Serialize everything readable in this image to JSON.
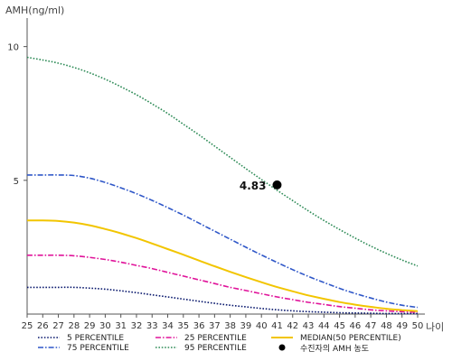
{
  "chart_data": {
    "type": "line",
    "ylabel": "AMH(ng/ml)",
    "xlabel": "나이",
    "xlim": [
      25,
      50
    ],
    "ylim": [
      0,
      11
    ],
    "yticks": [
      5,
      10
    ],
    "x": [
      25,
      26,
      27,
      28,
      29,
      30,
      31,
      32,
      33,
      34,
      35,
      36,
      37,
      38,
      39,
      40,
      41,
      42,
      43,
      44,
      45,
      46,
      47,
      48,
      49,
      50
    ],
    "grid": false,
    "legend_position": "bottom",
    "series": [
      {
        "name": "5 PERCENTILE",
        "color": "#0b1a6e",
        "dash": "dotted",
        "values": [
          1.0,
          1.0,
          1.0,
          1.0,
          0.97,
          0.93,
          0.87,
          0.8,
          0.72,
          0.64,
          0.56,
          0.48,
          0.4,
          0.33,
          0.27,
          0.21,
          0.16,
          0.12,
          0.09,
          0.07,
          0.05,
          0.04,
          0.03,
          0.02,
          0.02,
          0.02
        ]
      },
      {
        "name": "25 PERCENTILE",
        "color": "#e0139a",
        "dash": "dashdot",
        "values": [
          2.2,
          2.2,
          2.2,
          2.18,
          2.12,
          2.04,
          1.94,
          1.82,
          1.7,
          1.56,
          1.42,
          1.28,
          1.14,
          1.0,
          0.88,
          0.76,
          0.64,
          0.54,
          0.44,
          0.36,
          0.28,
          0.22,
          0.16,
          0.12,
          0.09,
          0.07
        ]
      },
      {
        "name": "MEDIAN(50 PERCENTILE)",
        "color": "#f2c500",
        "dash": "solid",
        "values": [
          3.5,
          3.5,
          3.48,
          3.42,
          3.32,
          3.18,
          3.02,
          2.84,
          2.64,
          2.43,
          2.22,
          2.0,
          1.79,
          1.58,
          1.38,
          1.19,
          1.01,
          0.85,
          0.7,
          0.57,
          0.45,
          0.35,
          0.27,
          0.2,
          0.15,
          0.11
        ]
      },
      {
        "name": "75 PERCENTILE",
        "color": "#2f57c8",
        "dash": "dashdot",
        "values": [
          5.2,
          5.2,
          5.2,
          5.18,
          5.08,
          4.92,
          4.72,
          4.5,
          4.25,
          3.98,
          3.7,
          3.4,
          3.1,
          2.8,
          2.5,
          2.21,
          1.93,
          1.66,
          1.41,
          1.18,
          0.96,
          0.77,
          0.6,
          0.45,
          0.33,
          0.25
        ]
      },
      {
        "name": "95 PERCENTILE",
        "color": "#2e8b57",
        "dash": "dotted",
        "values": [
          9.6,
          9.5,
          9.38,
          9.22,
          9.02,
          8.78,
          8.5,
          8.2,
          7.86,
          7.5,
          7.1,
          6.7,
          6.28,
          5.86,
          5.44,
          5.03,
          4.63,
          4.24,
          3.86,
          3.5,
          3.16,
          2.84,
          2.54,
          2.27,
          2.02,
          1.8
        ]
      }
    ],
    "marker": {
      "name": "수진자의 AMH 농도",
      "x": 41,
      "y": 4.83,
      "label": "4.83",
      "color": "#000000"
    }
  }
}
